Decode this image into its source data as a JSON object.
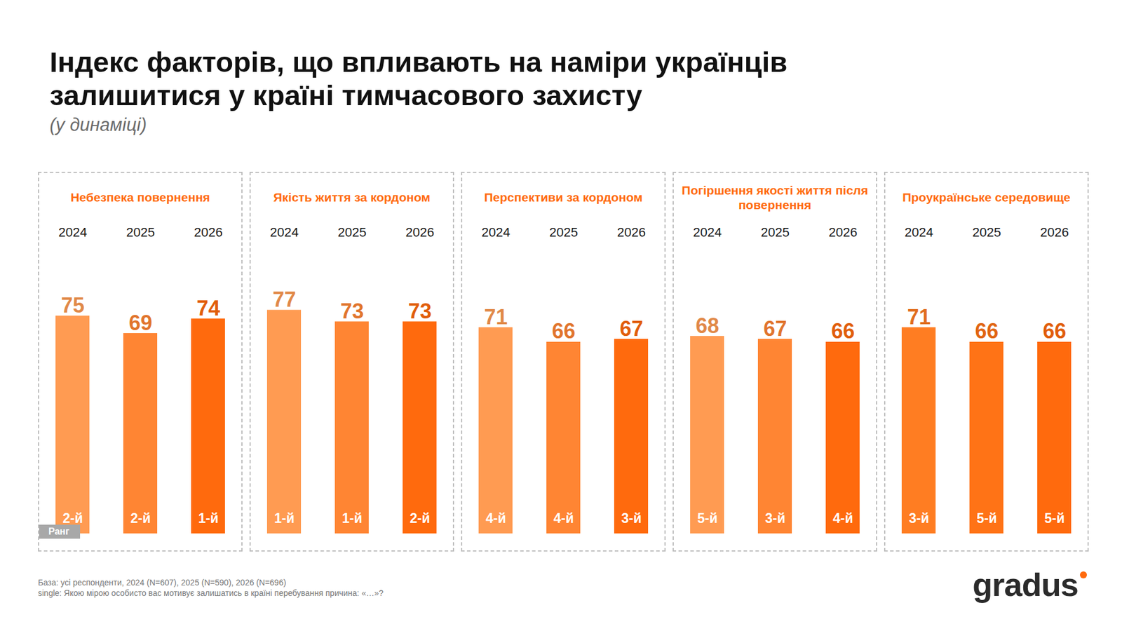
{
  "title": "Індекс факторів, що впливають на наміри українців залишитися у країні тимчасового захисту",
  "subtitle": "(у динаміці)",
  "rank_label": "Ранг",
  "notes": [
    "База: усі респонденти, 2024 (N=607), 2025 (N=590), 2026 (N=696)",
    "single: Якою мірою особисто вас мотивує залишатись в країні перебування причина: «…»?"
  ],
  "brand": "gradus",
  "chart_data": [
    {
      "type": "bar",
      "title": "Небезпека повернення",
      "categories": [
        "2024",
        "2025",
        "2026"
      ],
      "values": [
        75,
        69,
        74
      ],
      "ranks": [
        "2-й",
        "2-й",
        "1-й"
      ],
      "colors": [
        "#ff9b52",
        "#ff8533",
        "#ff6a0d"
      ],
      "ylim": [
        0,
        100
      ],
      "data_labels": true,
      "tick_labels": "x"
    },
    {
      "type": "bar",
      "title": "Якість життя за кордоном",
      "categories": [
        "2024",
        "2025",
        "2026"
      ],
      "values": [
        77,
        73,
        73
      ],
      "ranks": [
        "1-й",
        "1-й",
        "2-й"
      ],
      "colors": [
        "#ff9b52",
        "#ff8533",
        "#ff6a0d"
      ],
      "ylim": [
        0,
        100
      ],
      "data_labels": true,
      "tick_labels": "x"
    },
    {
      "type": "bar",
      "title": "Перспективи за кордоном",
      "categories": [
        "2024",
        "2025",
        "2026"
      ],
      "values": [
        71,
        66,
        67
      ],
      "ranks": [
        "4-й",
        "4-й",
        "3-й"
      ],
      "colors": [
        "#ff9b52",
        "#ff8533",
        "#ff6a0d"
      ],
      "ylim": [
        0,
        100
      ],
      "data_labels": true,
      "tick_labels": "x"
    },
    {
      "type": "bar",
      "title": "Погіршення якості життя після повернення",
      "categories": [
        "2024",
        "2025",
        "2026"
      ],
      "values": [
        68,
        67,
        66
      ],
      "ranks": [
        "5-й",
        "3-й",
        "4-й"
      ],
      "colors": [
        "#ff9b52",
        "#ff8533",
        "#ff6a0d"
      ],
      "ylim": [
        0,
        100
      ],
      "data_labels": true,
      "tick_labels": "x"
    },
    {
      "type": "bar",
      "title": "Проукраїнське середовище",
      "categories": [
        "2024",
        "2025",
        "2026"
      ],
      "values": [
        71,
        66,
        66
      ],
      "ranks": [
        "3-й",
        "5-й",
        "5-й"
      ],
      "colors": [
        "#ff7d22",
        "#ff7316",
        "#ff6a0d"
      ],
      "ylim": [
        0,
        100
      ],
      "data_labels": true,
      "tick_labels": "x"
    }
  ]
}
